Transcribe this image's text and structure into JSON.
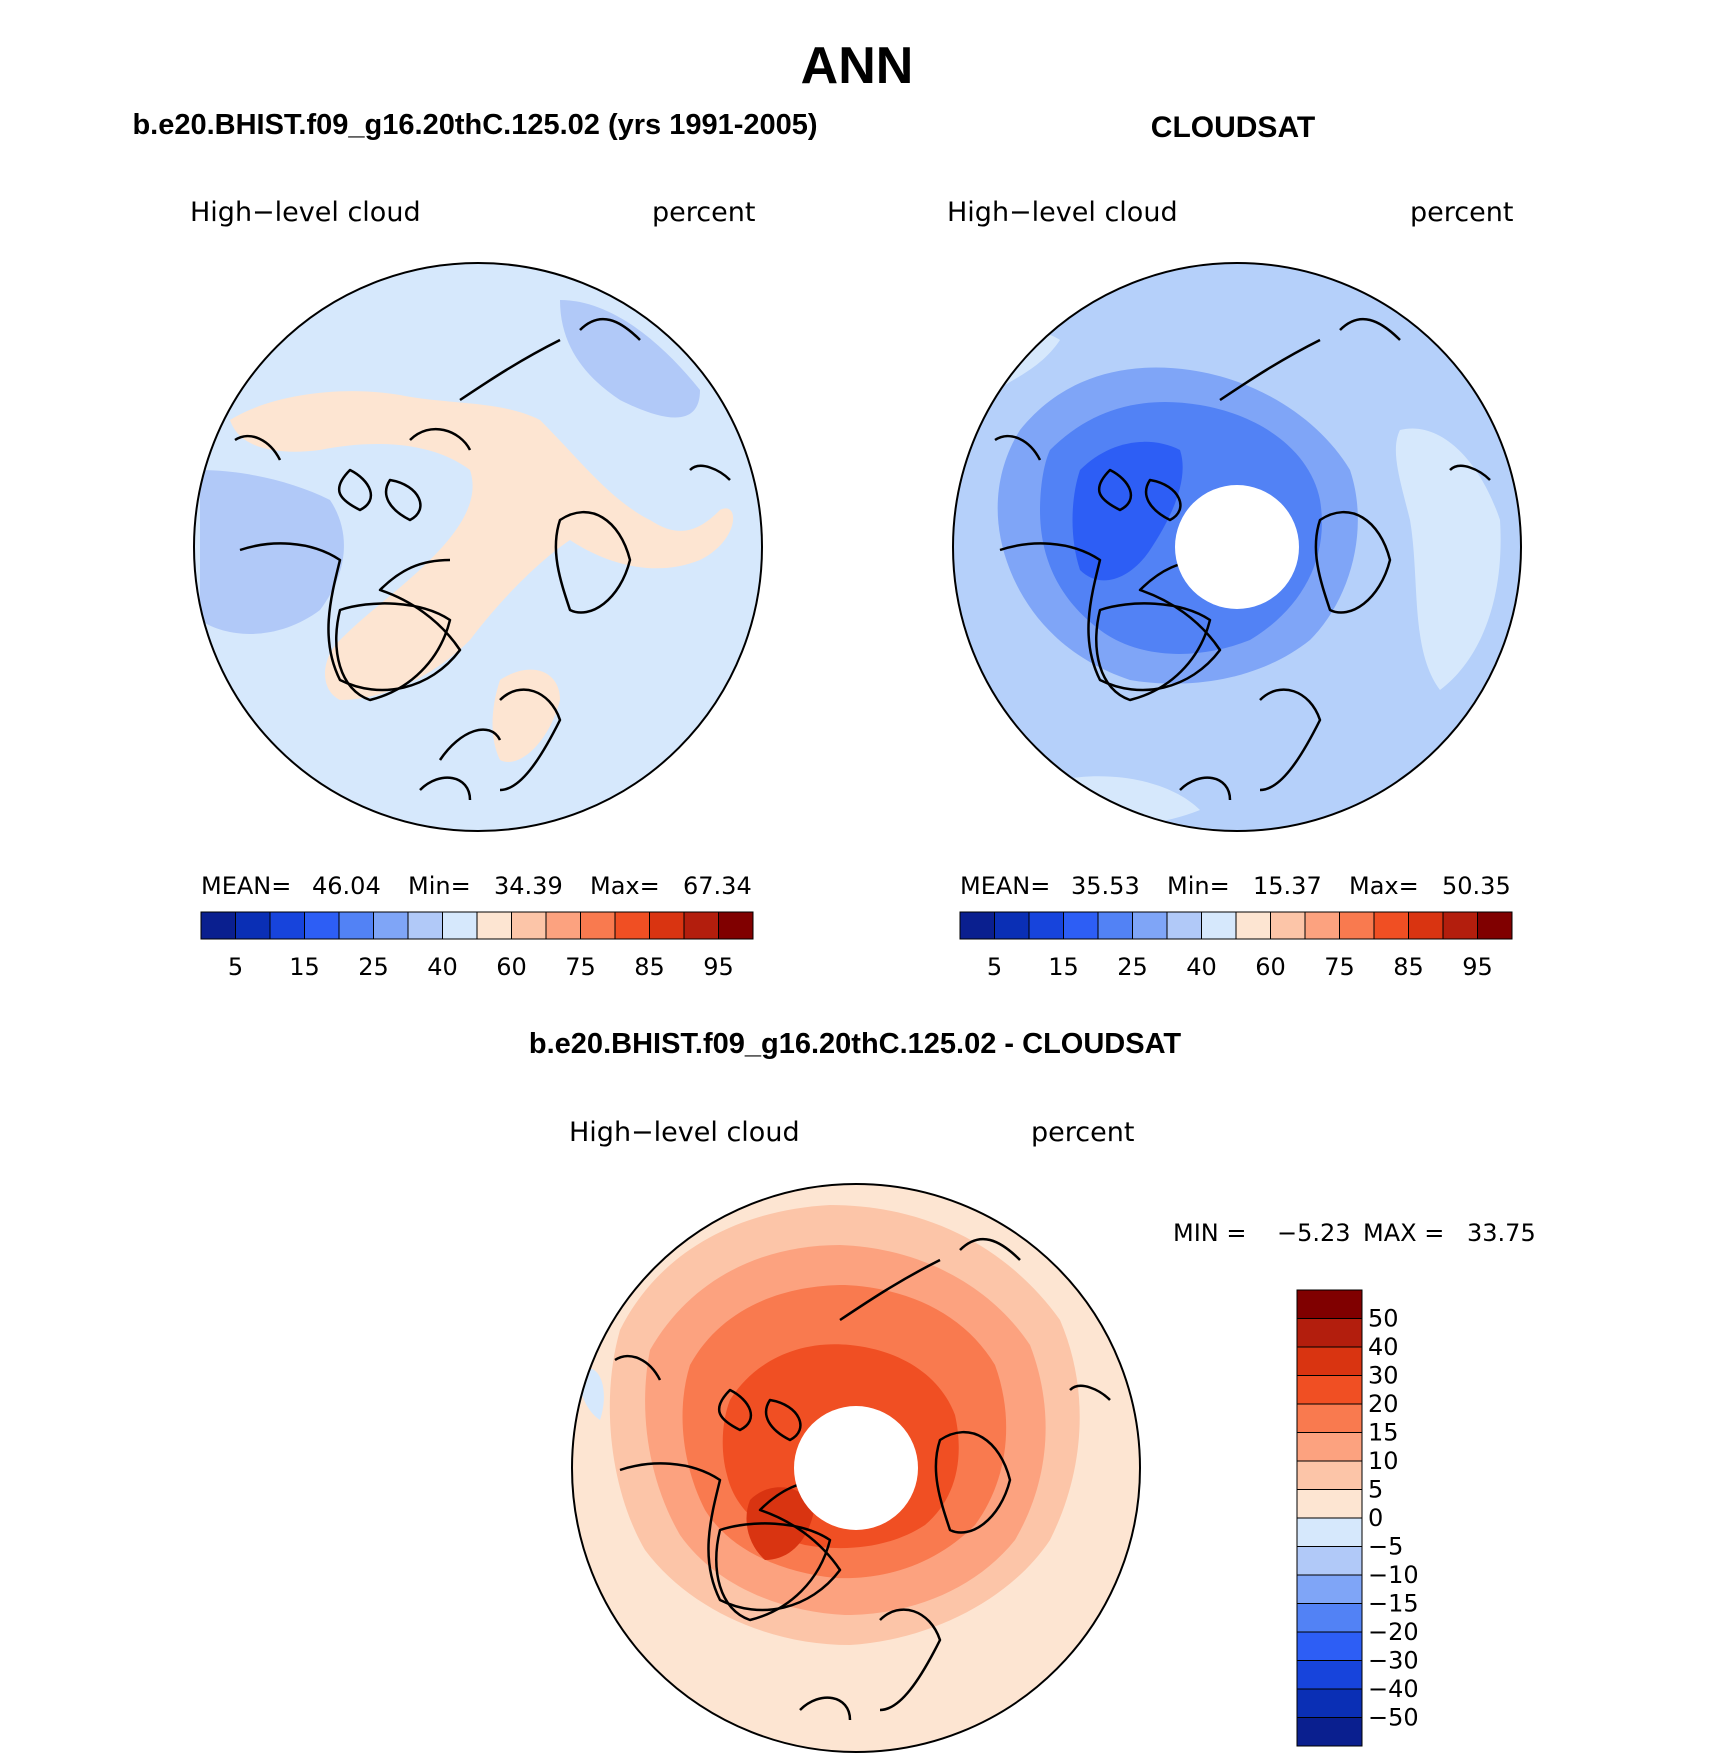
{
  "title": "ANN",
  "panels": [
    {
      "id": "model",
      "heading": "b.e20.BHIST.f09_g16.20thC.125.02 (yrs 1991-2005)",
      "left_label": "High−level cloud",
      "right_label": "percent",
      "stats": {
        "mean_label": "MEAN=",
        "mean": "46.04",
        "min_label": "Min=",
        "min": "34.39",
        "max_label": "Max=",
        "max": "67.34"
      },
      "base_color": "#d6e8fc",
      "has_polar_hole": false
    },
    {
      "id": "obs",
      "heading": "CLOUDSAT",
      "left_label": "High−level cloud",
      "right_label": "percent",
      "stats": {
        "mean_label": "MEAN=",
        "mean": "35.53",
        "min_label": "Min=",
        "min": "15.37",
        "max_label": "Max=",
        "max": "50.35"
      },
      "base_color": "#b5d0fa",
      "has_polar_hole": true
    },
    {
      "id": "diff",
      "heading": "b.e20.BHIST.f09_g16.20thC.125.02 - CLOUDSAT",
      "left_label": "High−level cloud",
      "right_label": "percent",
      "stats_text": {
        "min_label": "MIN =",
        "min": "−5.23",
        "max_label": "MAX =",
        "max": "33.75"
      },
      "base_color": "#fde5d2",
      "has_polar_hole": true
    }
  ],
  "colorbar_horizontal": {
    "colors": [
      "#0a1f8f",
      "#0a2fb5",
      "#1744dc",
      "#2d5ef5",
      "#5282f5",
      "#7fa5f7",
      "#b1c9f8",
      "#d6e8fc",
      "#fde5d2",
      "#fcc5a8",
      "#fca27f",
      "#f97a4f",
      "#f04f23",
      "#d93411",
      "#b31e0d",
      "#800000"
    ],
    "tick_labels": [
      "5",
      "15",
      "25",
      "40",
      "60",
      "75",
      "85",
      "95"
    ]
  },
  "colorbar_vertical": {
    "colors": [
      "#800000",
      "#b31e0d",
      "#d93411",
      "#f04f23",
      "#f97a4f",
      "#fca27f",
      "#fcc5a8",
      "#fde5d2",
      "#d6e8fc",
      "#b1c9f8",
      "#7fa5f7",
      "#5282f5",
      "#2d5ef5",
      "#1744dc",
      "#0a2fb5",
      "#0a1f8f"
    ],
    "tick_labels": [
      "50",
      "40",
      "30",
      "20",
      "15",
      "10",
      "5",
      "0",
      "−5",
      "−10",
      "−15",
      "−20",
      "−30",
      "−40",
      "−50"
    ]
  },
  "map_features": {
    "model": [
      {
        "color": "#fde5d2",
        "name": "warm-band"
      },
      {
        "color": "#fde5d2",
        "name": "atlantic-warm-region"
      },
      {
        "color": "#b1c9f8",
        "name": "canada-cool-region"
      },
      {
        "color": "#b1c9f8",
        "name": "pacific-cool-region"
      }
    ],
    "obs": [
      {
        "color": "#7fa5f7",
        "name": "arctic-ring-outer"
      },
      {
        "color": "#5282f5",
        "name": "arctic-ring-mid"
      },
      {
        "color": "#2d5ef5",
        "name": "arctic-ring-inner"
      },
      {
        "color": "#d6e8fc",
        "name": "midlat-light-region"
      }
    ],
    "diff": [
      {
        "color": "#fcc5a8",
        "name": "ring-10"
      },
      {
        "color": "#fca27f",
        "name": "ring-15"
      },
      {
        "color": "#f97a4f",
        "name": "ring-20"
      },
      {
        "color": "#f04f23",
        "name": "ring-30"
      },
      {
        "color": "#d93411",
        "name": "greenland-max"
      },
      {
        "color": "#d6e8fc",
        "name": "negative-patch"
      }
    ]
  }
}
